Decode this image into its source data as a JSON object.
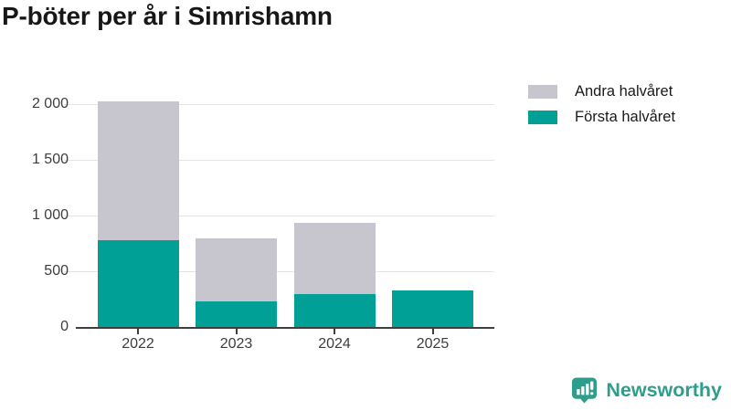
{
  "title": "P-böter per år i Simrishamn",
  "branding": {
    "name": "Newsworthy",
    "icon": "chart-speech-bubble-icon",
    "color": "#2f9d8c"
  },
  "chart_data": {
    "type": "bar",
    "stacked": true,
    "title": "P-böter per år i Simrishamn",
    "xlabel": "",
    "ylabel": "",
    "categories": [
      "2022",
      "2023",
      "2024",
      "2025"
    ],
    "series": [
      {
        "name": "Första halvåret",
        "color": "#00a096",
        "values": [
          780,
          230,
          295,
          330
        ]
      },
      {
        "name": "Andra halvåret",
        "color": "#c7c5cd",
        "values": [
          1245,
          565,
          640,
          0
        ]
      }
    ],
    "totals": [
      2025,
      795,
      935,
      330
    ],
    "ylim": [
      0,
      2075
    ],
    "yticks": [
      {
        "value": 0,
        "label": "0"
      },
      {
        "value": 500,
        "label": "500"
      },
      {
        "value": 1000,
        "label": "1 000"
      },
      {
        "value": 1500,
        "label": "1 500"
      },
      {
        "value": 2000,
        "label": "2 000"
      }
    ],
    "grid": true,
    "legend_position": "top-right",
    "legend_order": [
      "Andra halvåret",
      "Första halvåret"
    ]
  }
}
